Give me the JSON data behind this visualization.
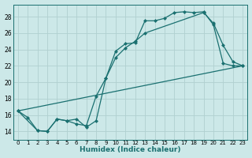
{
  "xlabel": "Humidex (Indice chaleur)",
  "bg_color": "#cce8e8",
  "line_color": "#1a7070",
  "grid_color": "#b0d0d0",
  "xlim": [
    -0.5,
    23.5
  ],
  "ylim": [
    13.0,
    29.5
  ],
  "yticks": [
    14,
    16,
    18,
    20,
    22,
    24,
    26,
    28
  ],
  "xticks": [
    0,
    1,
    2,
    3,
    4,
    5,
    6,
    7,
    8,
    9,
    10,
    11,
    12,
    13,
    14,
    15,
    16,
    17,
    18,
    19,
    20,
    21,
    22,
    23
  ],
  "line1_x": [
    0,
    1,
    2,
    3,
    4,
    5,
    6,
    7,
    8,
    9,
    10,
    11,
    12,
    13,
    14,
    15,
    16,
    17,
    18,
    19,
    20,
    21,
    22,
    23
  ],
  "line1_y": [
    16.5,
    15.7,
    14.1,
    14.0,
    15.5,
    15.3,
    14.9,
    14.7,
    18.3,
    20.5,
    23.8,
    24.7,
    24.8,
    27.5,
    27.5,
    27.8,
    28.5,
    28.6,
    28.5,
    28.6,
    27.0,
    22.3,
    22.0,
    22.0
  ],
  "line2_x": [
    0,
    2,
    3,
    4,
    5,
    6,
    7,
    8,
    9,
    10,
    11,
    12,
    13,
    19,
    20,
    21,
    22,
    23
  ],
  "line2_y": [
    16.5,
    14.1,
    14.0,
    15.5,
    15.3,
    15.5,
    14.5,
    15.3,
    20.5,
    23.0,
    24.2,
    25.0,
    26.0,
    28.5,
    27.2,
    24.5,
    22.5,
    22.0
  ],
  "line3_x": [
    0,
    23
  ],
  "line3_y": [
    16.5,
    22.0
  ]
}
